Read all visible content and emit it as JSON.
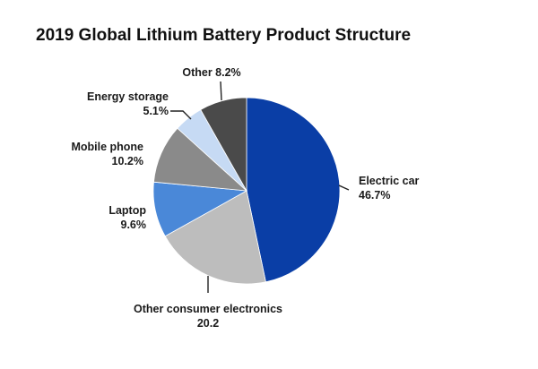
{
  "chart_data": {
    "type": "pie",
    "title": "2019 Global Lithium Battery Product Structure",
    "slices": [
      {
        "label": "Electric car",
        "value_text": "46.7%",
        "value": 46.7,
        "color": "#0a3ea6"
      },
      {
        "label": "Other consumer electronics",
        "value_text": "20.2",
        "value": 20.2,
        "color": "#bdbdbd"
      },
      {
        "label": "Laptop",
        "value_text": "9.6%",
        "value": 9.6,
        "color": "#4a88d8"
      },
      {
        "label": "Mobile phone",
        "value_text": "10.2%",
        "value": 10.2,
        "color": "#8a8a8a"
      },
      {
        "label": "Energy storage",
        "value_text": "5.1%",
        "value": 5.1,
        "color": "#c6daf4"
      },
      {
        "label": "Other",
        "value_text": "8.2%",
        "value": 8.2,
        "color": "#4a4a4a"
      }
    ],
    "legend": "none"
  }
}
